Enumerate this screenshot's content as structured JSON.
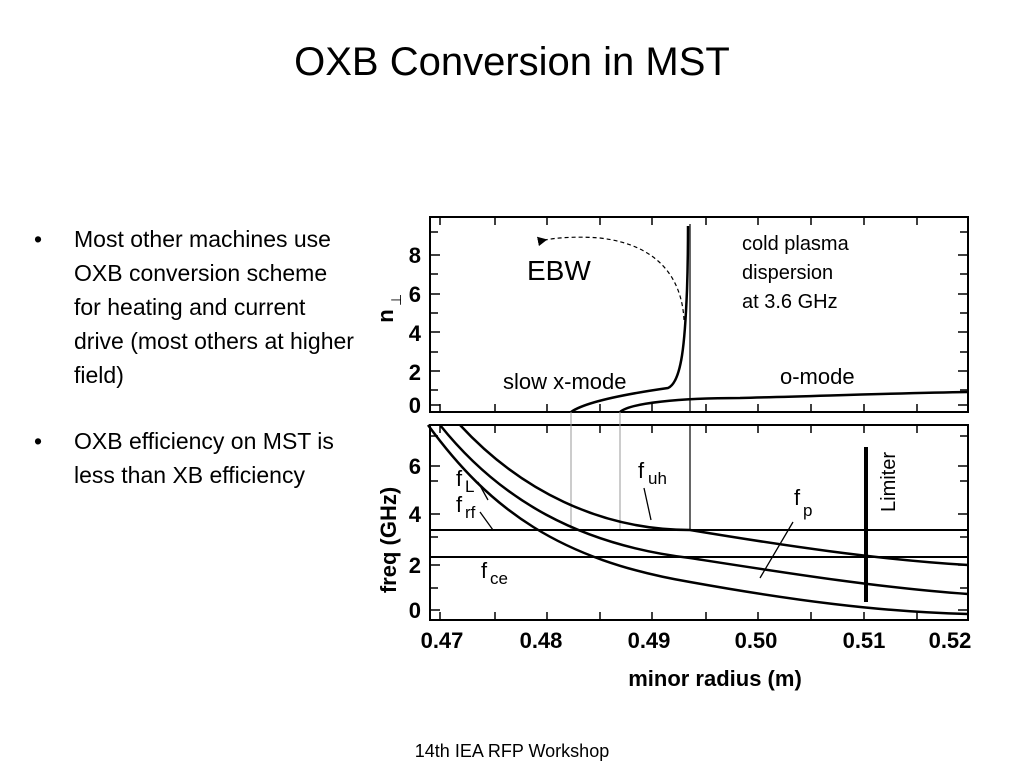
{
  "slide": {
    "title": "OXB Conversion in MST",
    "bullets": [
      {
        "marker": "•",
        "text": "Most other machines use OXB conversion scheme for heating and current drive (most others at higher field)"
      },
      {
        "marker": "•",
        "text": "OXB efficiency on MST is less than XB efficiency"
      }
    ],
    "footer": "14th IEA RFP Workshop"
  },
  "figure": {
    "top_panel": {
      "ylabel_main": "n",
      "ylabel_sub": "⊥",
      "yticks": [
        "0",
        "2",
        "4",
        "6",
        "8"
      ],
      "labels": {
        "ebw": "EBW",
        "slow_x": "slow x-mode",
        "o_mode": "o-mode",
        "cold1": "cold plasma",
        "cold2": "dispersion",
        "cold3": "at 3.6 GHz"
      }
    },
    "bottom_panel": {
      "ylabel": "freq (GHz)",
      "yticks": [
        "0",
        "2",
        "4",
        "6"
      ],
      "labels": {
        "f": "f",
        "uh": "uh",
        "L": "L",
        "rf": "rf",
        "p": "p",
        "ce": "ce",
        "limiter": "Limiter"
      }
    },
    "xticks": [
      "0.47",
      "0.48",
      "0.49",
      "0.50",
      "0.51",
      "0.52"
    ],
    "xlabel": "minor radius (m)"
  }
}
